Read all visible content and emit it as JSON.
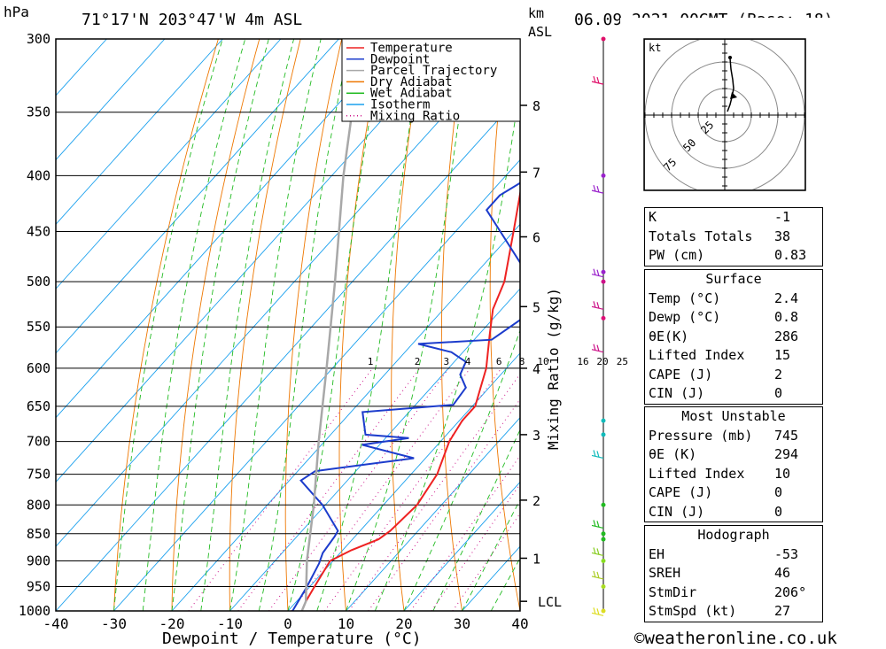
{
  "header": {
    "hpa_unit": "hPa",
    "location": "71°17'N  203°47'W  4m  ASL",
    "km_unit": "km",
    "asl_unit": "ASL",
    "datetime": "06.09.2021  00GMT  (Base: 18)"
  },
  "legend": [
    "Temperature",
    "Dewpoint",
    "Parcel Trajectory",
    "Dry Adiabat",
    "Wet Adiabat",
    "Isotherm",
    "Mixing Ratio"
  ],
  "colors": {
    "temperature": "#ee2222",
    "dewpoint": "#1c3ccc",
    "parcel": "#a8a8a8",
    "dry_adiabat": "#ee7700",
    "wet_adiabat": "#22bb22",
    "isotherm": "#1aa0ee",
    "mixing_ratio": "#cc1188"
  },
  "chart_data": {
    "type": "line",
    "title": "",
    "xlabel": "Dewpoint / Temperature (°C)",
    "ylabel": "hPa",
    "right_ylabel": "Mixing Ratio (g/kg)",
    "x_ticks": [
      -40,
      -30,
      -20,
      -10,
      0,
      10,
      20,
      30,
      40
    ],
    "pressure_levels": [
      300,
      350,
      400,
      450,
      500,
      550,
      600,
      650,
      700,
      750,
      800,
      850,
      900,
      950,
      1000
    ],
    "x_range": [
      -40,
      40
    ],
    "p_range": [
      300,
      1000
    ],
    "height_km_ticks": [
      {
        "label": "8",
        "p": 345
      },
      {
        "label": "7",
        "p": 397
      },
      {
        "label": "6",
        "p": 455
      },
      {
        "label": "5",
        "p": 527
      },
      {
        "label": "4",
        "p": 600
      },
      {
        "label": "3",
        "p": 690
      },
      {
        "label": "2",
        "p": 792
      },
      {
        "label": "1",
        "p": 895
      }
    ],
    "lcl": {
      "label": "LCL",
      "p": 980
    },
    "mixing_ratio_labels": [
      "1",
      "2",
      "3",
      "4",
      "6",
      "8",
      "10",
      "16",
      "20",
      "25"
    ],
    "mixing_ratio_values": [
      1,
      2,
      3,
      4,
      6,
      8,
      10,
      16,
      20,
      25
    ],
    "series": [
      {
        "name": "Temperature",
        "points": [
          [
            1000,
            2.4
          ],
          [
            980,
            1.6
          ],
          [
            950,
            0.8
          ],
          [
            900,
            -0.5
          ],
          [
            880,
            1.5
          ],
          [
            860,
            4.5
          ],
          [
            845,
            5.2
          ],
          [
            800,
            5.8
          ],
          [
            750,
            4.5
          ],
          [
            700,
            1.5
          ],
          [
            670,
            0.5
          ],
          [
            650,
            0.5
          ],
          [
            600,
            -3.5
          ],
          [
            560,
            -8
          ],
          [
            530,
            -11.5
          ],
          [
            500,
            -13.8
          ],
          [
            450,
            -20
          ],
          [
            400,
            -27
          ],
          [
            350,
            -36
          ],
          [
            300,
            -44
          ]
        ]
      },
      {
        "name": "Dewpoint",
        "points": [
          [
            1000,
            0.8
          ],
          [
            950,
            -0.5
          ],
          [
            905,
            -2
          ],
          [
            885,
            -3
          ],
          [
            855,
            -3.5
          ],
          [
            845,
            -3.8
          ],
          [
            830,
            -6
          ],
          [
            800,
            -10.5
          ],
          [
            760,
            -18
          ],
          [
            745,
            -17
          ],
          [
            725,
            -2
          ],
          [
            705,
            -13
          ],
          [
            695,
            -6
          ],
          [
            690,
            -14
          ],
          [
            658,
            -18
          ],
          [
            648,
            -3.5
          ],
          [
            625,
            -4
          ],
          [
            608,
            -7
          ],
          [
            592,
            -8
          ],
          [
            580,
            -12
          ],
          [
            570,
            -19
          ],
          [
            565,
            -7
          ],
          [
            540,
            -5
          ],
          [
            510,
            -7
          ],
          [
            500,
            -9
          ],
          [
            430,
            -28
          ],
          [
            417,
            -28
          ],
          [
            397,
            -25
          ],
          [
            382,
            -26
          ],
          [
            360,
            -29
          ],
          [
            340,
            -34
          ],
          [
            300,
            -42
          ]
        ]
      },
      {
        "name": "Parcel Trajectory",
        "points": [
          [
            1000,
            2.4
          ],
          [
            980,
            1.6
          ],
          [
            900,
            -4.5
          ],
          [
            800,
            -12
          ],
          [
            700,
            -21
          ],
          [
            600,
            -31
          ],
          [
            500,
            -43
          ],
          [
            400,
            -58
          ],
          [
            300,
            -76
          ]
        ]
      }
    ],
    "hodograph": {
      "unit": "kt",
      "rings": [
        "25",
        "50",
        "75"
      ]
    }
  },
  "indices": {
    "rows": [
      {
        "k": "K",
        "v": "-1"
      },
      {
        "k": "Totals Totals",
        "v": "38"
      },
      {
        "k": "PW (cm)",
        "v": "0.83"
      }
    ]
  },
  "surface": {
    "title": "Surface",
    "rows": [
      {
        "k": "Temp (°C)",
        "v": "2.4"
      },
      {
        "k": "Dewp (°C)",
        "v": "0.8"
      },
      {
        "k": "θE(K)",
        "v": "286"
      },
      {
        "k": "Lifted Index",
        "v": "15"
      },
      {
        "k": "CAPE (J)",
        "v": "2"
      },
      {
        "k": "CIN (J)",
        "v": "0"
      }
    ]
  },
  "most_unstable": {
    "title": "Most Unstable",
    "rows": [
      {
        "k": "Pressure (mb)",
        "v": "745"
      },
      {
        "k": "θE (K)",
        "v": "294"
      },
      {
        "k": "Lifted Index",
        "v": "10"
      },
      {
        "k": "CAPE (J)",
        "v": "0"
      },
      {
        "k": "CIN (J)",
        "v": "0"
      }
    ]
  },
  "hodograph_box": {
    "title": "Hodograph",
    "rows": [
      {
        "k": "EH",
        "v": "-53"
      },
      {
        "k": "SREH",
        "v": "46"
      },
      {
        "k": "StmDir",
        "v": "206°"
      },
      {
        "k": "StmSpd (kt)",
        "v": "27"
      }
    ]
  },
  "footer": {
    "copyright": "©weatheronline.co.uk"
  }
}
